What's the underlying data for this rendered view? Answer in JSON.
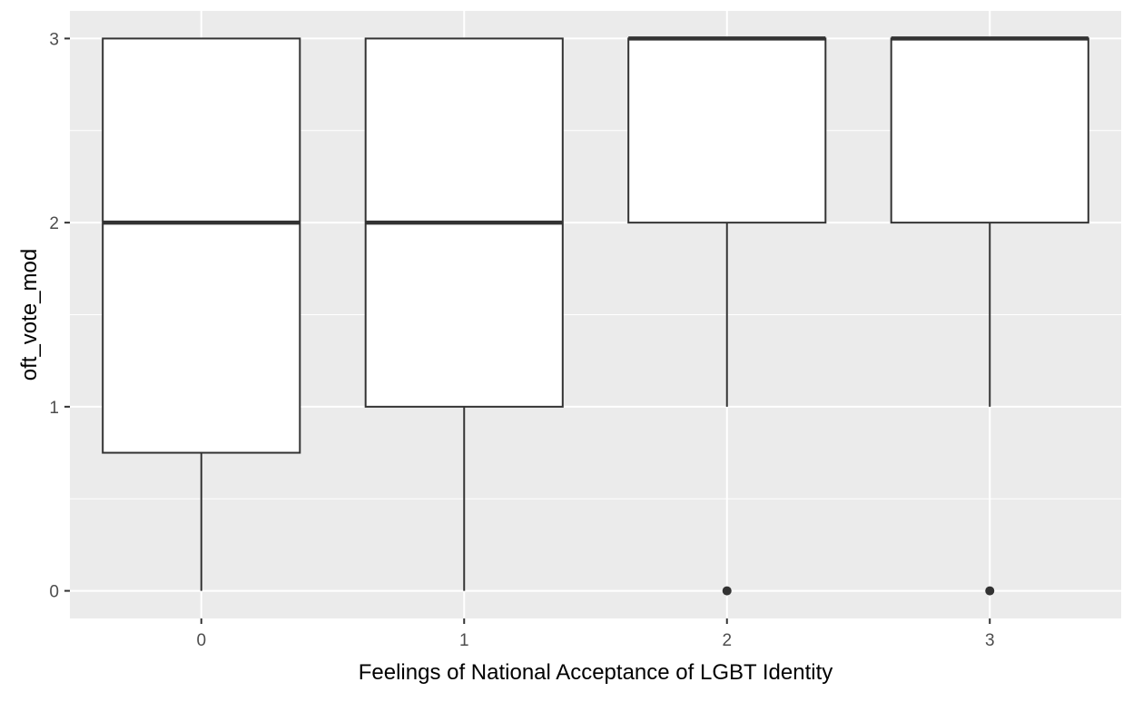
{
  "chart_data": {
    "type": "boxplot",
    "xlabel": "Feelings of National Acceptance of LGBT Identity",
    "ylabel": "oft_vote_mod",
    "categories": [
      "0",
      "1",
      "2",
      "3"
    ],
    "ylim": [
      -0.15,
      3.15
    ],
    "y_ticks": [
      "0",
      "1",
      "2",
      "3"
    ],
    "y_tick_values": [
      0,
      1,
      2,
      3
    ],
    "grid": true,
    "legend": "none",
    "boxes": [
      {
        "category": "0",
        "whisker_low": 0,
        "q1": 0.75,
        "median": 2,
        "q3": 3,
        "whisker_high": 3,
        "outliers": []
      },
      {
        "category": "1",
        "whisker_low": 0,
        "q1": 1,
        "median": 2,
        "q3": 3,
        "whisker_high": 3,
        "outliers": []
      },
      {
        "category": "2",
        "whisker_low": 1,
        "q1": 2,
        "median": 3,
        "q3": 3,
        "whisker_high": 3,
        "outliers": [
          0
        ]
      },
      {
        "category": "3",
        "whisker_low": 1,
        "q1": 2,
        "median": 3,
        "q3": 3,
        "whisker_high": 3,
        "outliers": [
          0
        ]
      }
    ],
    "colors": {
      "panel_background": "#ebebeb",
      "grid": "#ffffff",
      "box_fill": "#ffffff",
      "box_line": "#333333"
    }
  }
}
